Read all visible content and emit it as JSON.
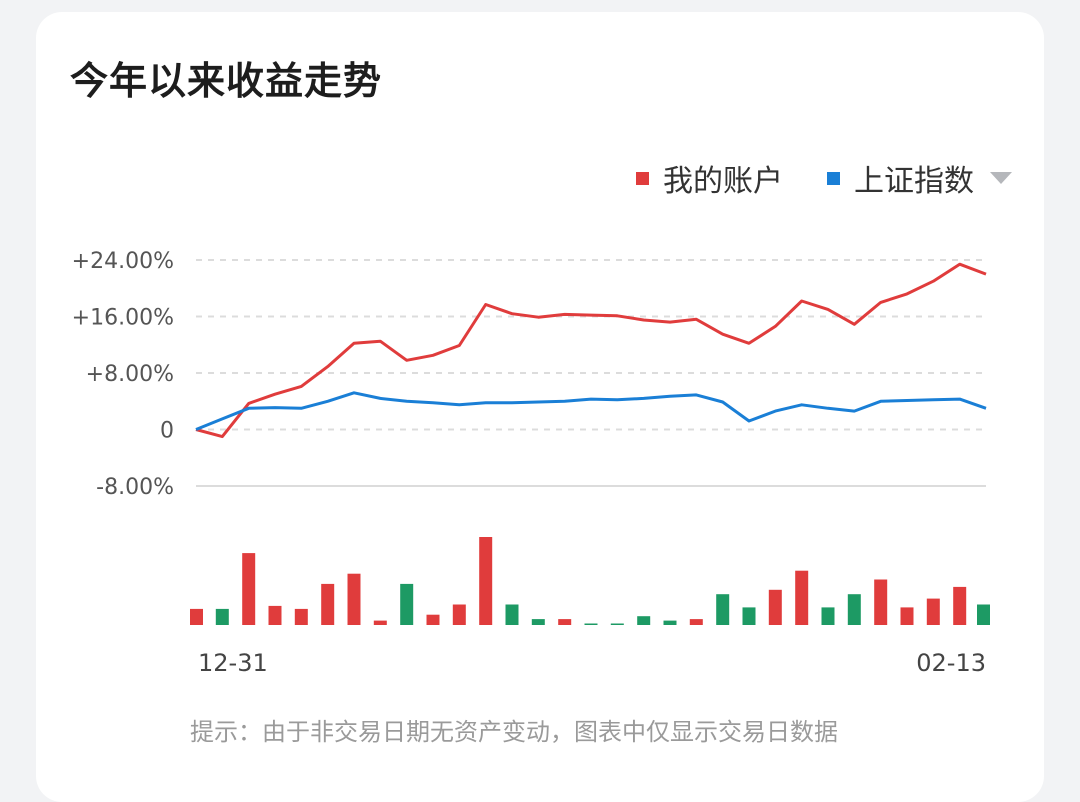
{
  "title": "今年以来收益走势",
  "legend": {
    "items": [
      {
        "label": "我的账户",
        "color": "#e03c3c"
      },
      {
        "label": "上证指数",
        "color": "#1a7fd6"
      }
    ],
    "dropdown_icon": "triangle-down-icon"
  },
  "footnote": "提示：由于非交易日期无资产变动，图表中仅显示交易日数据",
  "colors": {
    "up": "#e03c3c",
    "down": "#1d9a64",
    "grid": "#dcdcdc"
  },
  "chart_data": [
    {
      "type": "line",
      "ylim": [
        -8,
        24
      ],
      "y_ticks": [
        24,
        16,
        8,
        0,
        -8
      ],
      "y_tick_labels": [
        "+24.00%",
        "+16.00%",
        "+8.00%",
        "0",
        "-8.00%"
      ],
      "x_tick_labels": [
        "12-31",
        "02-13"
      ],
      "series": [
        {
          "name": "我的账户",
          "color": "#e03c3c",
          "values": [
            0,
            -1,
            3.7,
            5.0,
            6.1,
            8.9,
            12.2,
            12.5,
            9.8,
            10.5,
            11.9,
            17.7,
            16.4,
            15.9,
            16.3,
            16.2,
            16.1,
            15.5,
            15.2,
            15.6,
            13.5,
            12.2,
            14.6,
            18.2,
            17.0,
            14.9,
            18.0,
            19.2,
            21.0,
            23.4,
            22.0
          ]
        },
        {
          "name": "上证指数",
          "color": "#1a7fd6",
          "values": [
            0,
            1.5,
            3.0,
            3.1,
            3.0,
            4.0,
            5.2,
            4.4,
            4.0,
            3.8,
            3.5,
            3.8,
            3.8,
            3.9,
            4.0,
            4.3,
            4.2,
            4.4,
            4.7,
            4.9,
            3.9,
            1.2,
            2.6,
            3.5,
            3.0,
            2.6,
            4.0,
            4.1,
            4.2,
            4.3,
            3.0
          ]
        }
      ]
    },
    {
      "type": "bar",
      "x_tick_labels": [
        "12-31",
        "02-13"
      ],
      "series": [
        {
          "name": "daily_change",
          "values": [
            1.1,
            -1.1,
            4.9,
            1.3,
            1.1,
            2.8,
            3.5,
            0.3,
            -2.8,
            0.7,
            1.4,
            6.0,
            -1.4,
            -0.4,
            0.4,
            -0.1,
            -0.05,
            -0.6,
            -0.3,
            0.4,
            -2.1,
            -1.2,
            2.4,
            3.7,
            -1.2,
            -2.1,
            3.1,
            1.2,
            1.8,
            2.6,
            -1.4
          ]
        }
      ]
    }
  ]
}
